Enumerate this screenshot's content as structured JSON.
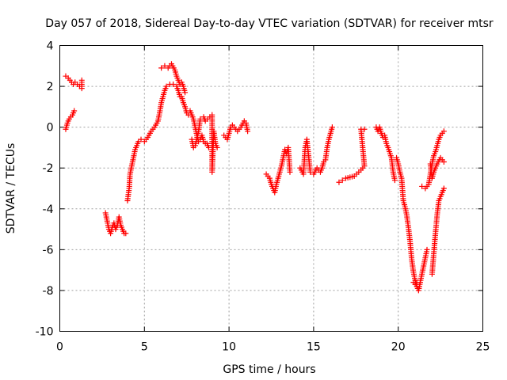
{
  "chart_data": {
    "type": "scatter",
    "title": "Day 057 of 2018, Sidereal Day-to-day VTEC variation (SDTVAR) for receiver mtsr",
    "xlabel": "GPS time / hours",
    "ylabel": "SDTVAR / TECUs",
    "xlim": [
      0,
      25
    ],
    "ylim": [
      -10,
      4
    ],
    "xticks": [
      0,
      5,
      10,
      15,
      20,
      25
    ],
    "yticks": [
      4,
      2,
      0,
      -2,
      -4,
      -6,
      -8,
      -10
    ],
    "xtick_labels": [
      "0",
      "5",
      "10",
      "15",
      "20",
      "25"
    ],
    "ytick_labels": [
      "4",
      "2",
      "0",
      "-2",
      "-4",
      "-6",
      "-8",
      "-10"
    ],
    "grid": true,
    "marker": "+",
    "series": [
      {
        "name": "SDTVAR",
        "color": "#ff0000",
        "segments": [
          [
            [
              0.35,
              2.5
            ],
            [
              0.5,
              2.4
            ],
            [
              0.6,
              2.3
            ],
            [
              0.7,
              2.2
            ],
            [
              0.8,
              2.1
            ],
            [
              0.9,
              2.2
            ],
            [
              1.3,
              1.9
            ],
            [
              1.3,
              2.3
            ]
          ],
          [
            [
              0.35,
              -0.1
            ],
            [
              0.45,
              0.2
            ],
            [
              0.55,
              0.4
            ],
            [
              0.65,
              0.5
            ],
            [
              0.75,
              0.6
            ],
            [
              0.85,
              0.8
            ]
          ],
          [
            [
              2.7,
              -4.2
            ],
            [
              2.8,
              -4.6
            ],
            [
              2.9,
              -5.0
            ],
            [
              3.0,
              -5.2
            ],
            [
              3.1,
              -4.9
            ],
            [
              3.2,
              -4.7
            ],
            [
              3.3,
              -5.0
            ],
            [
              3.4,
              -4.8
            ],
            [
              3.5,
              -4.4
            ],
            [
              3.6,
              -4.8
            ],
            [
              3.8,
              -5.2
            ],
            [
              3.9,
              -5.2
            ]
          ],
          [
            [
              4.0,
              -3.6
            ],
            [
              4.1,
              -3.0
            ],
            [
              4.15,
              -2.3
            ],
            [
              4.25,
              -1.9
            ],
            [
              4.35,
              -1.5
            ],
            [
              4.45,
              -1.1
            ],
            [
              4.55,
              -0.9
            ],
            [
              4.65,
              -0.7
            ],
            [
              4.8,
              -0.6
            ],
            [
              5.0,
              -0.7
            ],
            [
              5.2,
              -0.5
            ],
            [
              5.4,
              -0.2
            ],
            [
              5.6,
              0.0
            ],
            [
              5.8,
              0.3
            ],
            [
              5.9,
              0.7
            ],
            [
              6.0,
              1.2
            ],
            [
              6.1,
              1.5
            ],
            [
              6.2,
              1.8
            ],
            [
              6.3,
              2.0
            ],
            [
              6.5,
              2.1
            ],
            [
              6.7,
              2.1
            ],
            [
              6.9,
              2.0
            ],
            [
              7.0,
              1.8
            ],
            [
              7.1,
              1.5
            ],
            [
              7.2,
              1.5
            ],
            [
              7.3,
              1.2
            ],
            [
              7.4,
              1.0
            ],
            [
              7.5,
              0.7
            ],
            [
              7.6,
              0.6
            ]
          ],
          [
            [
              6.0,
              2.9
            ],
            [
              6.2,
              3.0
            ],
            [
              6.4,
              2.9
            ],
            [
              6.6,
              3.1
            ],
            [
              6.8,
              2.8
            ],
            [
              6.9,
              2.5
            ],
            [
              7.0,
              2.3
            ],
            [
              7.1,
              2.1
            ],
            [
              7.2,
              2.2
            ],
            [
              7.3,
              2.0
            ],
            [
              7.4,
              1.7
            ]
          ],
          [
            [
              7.7,
              0.8
            ],
            [
              7.9,
              0.4
            ],
            [
              8.0,
              0.0
            ],
            [
              8.1,
              -0.4
            ],
            [
              8.2,
              -0.7
            ],
            [
              8.3,
              -0.6
            ],
            [
              8.4,
              -0.4
            ],
            [
              8.5,
              -0.7
            ],
            [
              8.6,
              -0.8
            ],
            [
              8.7,
              -0.8
            ],
            [
              8.8,
              -1.0
            ]
          ],
          [
            [
              7.8,
              -0.6
            ],
            [
              7.9,
              -1.0
            ],
            [
              8.0,
              -0.9
            ],
            [
              8.2,
              -0.2
            ],
            [
              8.3,
              0.4
            ],
            [
              8.5,
              0.5
            ],
            [
              8.6,
              0.3
            ],
            [
              9.0,
              0.6
            ],
            [
              9.0,
              -2.2
            ],
            [
              9.1,
              -0.2
            ],
            [
              9.2,
              -0.8
            ],
            [
              9.3,
              -1.0
            ]
          ],
          [
            [
              9.7,
              -0.4
            ],
            [
              9.9,
              -0.6
            ],
            [
              10.0,
              -0.3
            ],
            [
              10.1,
              0.0
            ],
            [
              10.2,
              0.1
            ],
            [
              10.3,
              0.0
            ],
            [
              10.5,
              -0.2
            ],
            [
              10.7,
              0.0
            ],
            [
              10.9,
              0.3
            ],
            [
              11.0,
              0.2
            ],
            [
              11.1,
              -0.2
            ]
          ],
          [
            [
              12.2,
              -2.3
            ],
            [
              12.4,
              -2.5
            ],
            [
              12.5,
              -2.8
            ],
            [
              12.6,
              -3.0
            ],
            [
              12.7,
              -3.2
            ],
            [
              12.8,
              -2.8
            ],
            [
              12.9,
              -2.5
            ],
            [
              13.0,
              -2.2
            ],
            [
              13.1,
              -1.9
            ],
            [
              13.2,
              -1.5
            ],
            [
              13.3,
              -1.1
            ],
            [
              13.4,
              -1.3
            ],
            [
              13.5,
              -1.0
            ],
            [
              13.6,
              -2.2
            ]
          ],
          [
            [
              14.2,
              -2.0
            ],
            [
              14.4,
              -2.3
            ],
            [
              14.5,
              -1.0
            ],
            [
              14.6,
              -0.6
            ],
            [
              14.7,
              -1.4
            ],
            [
              14.8,
              -2.2
            ],
            [
              15.0,
              -2.3
            ],
            [
              15.2,
              -2.0
            ],
            [
              15.4,
              -2.2
            ],
            [
              15.5,
              -2.0
            ],
            [
              15.6,
              -1.7
            ],
            [
              15.7,
              -1.6
            ],
            [
              15.8,
              -1.0
            ],
            [
              15.9,
              -0.6
            ],
            [
              16.0,
              -0.3
            ],
            [
              16.1,
              0.0
            ]
          ],
          [
            [
              16.5,
              -2.7
            ],
            [
              16.7,
              -2.6
            ],
            [
              16.9,
              -2.5
            ],
            [
              17.4,
              -2.4
            ],
            [
              17.8,
              -2.1
            ],
            [
              18.0,
              -1.9
            ],
            [
              17.8,
              -0.1
            ],
            [
              18.0,
              -0.1
            ]
          ],
          [
            [
              18.7,
              0.0
            ],
            [
              18.8,
              -0.2
            ],
            [
              18.9,
              0.0
            ],
            [
              19.0,
              -0.3
            ],
            [
              19.1,
              -0.5
            ],
            [
              19.2,
              -0.4
            ],
            [
              19.3,
              -0.8
            ],
            [
              19.4,
              -1.0
            ],
            [
              19.6,
              -1.5
            ],
            [
              19.7,
              -2.2
            ],
            [
              19.8,
              -2.6
            ]
          ],
          [
            [
              19.9,
              -1.5
            ],
            [
              20.0,
              -1.8
            ],
            [
              20.1,
              -2.2
            ],
            [
              20.2,
              -2.5
            ],
            [
              20.3,
              -3.6
            ],
            [
              20.4,
              -3.9
            ],
            [
              20.5,
              -4.3
            ],
            [
              20.6,
              -4.9
            ],
            [
              20.7,
              -5.6
            ],
            [
              20.8,
              -6.5
            ],
            [
              20.9,
              -7.1
            ],
            [
              21.0,
              -7.5
            ],
            [
              21.1,
              -7.8
            ],
            [
              21.2,
              -8.0
            ],
            [
              21.3,
              -7.6
            ],
            [
              21.4,
              -7.2
            ],
            [
              21.5,
              -6.8
            ],
            [
              21.6,
              -6.4
            ],
            [
              21.7,
              -6.0
            ]
          ],
          [
            [
              20.9,
              -7.6
            ],
            [
              21.0,
              -7.7
            ],
            [
              21.1,
              -7.6
            ]
          ],
          [
            [
              21.4,
              -2.9
            ],
            [
              21.6,
              -3.0
            ],
            [
              21.8,
              -2.8
            ],
            [
              21.9,
              -2.3
            ],
            [
              22.0,
              -1.8
            ],
            [
              22.1,
              -1.4
            ],
            [
              22.2,
              -1.2
            ],
            [
              22.3,
              -0.9
            ],
            [
              22.4,
              -0.6
            ],
            [
              22.5,
              -0.4
            ],
            [
              22.6,
              -0.3
            ],
            [
              22.7,
              -0.2
            ]
          ],
          [
            [
              22.0,
              -7.2
            ],
            [
              22.1,
              -6.2
            ],
            [
              22.2,
              -5.2
            ],
            [
              22.3,
              -4.3
            ],
            [
              22.4,
              -3.6
            ],
            [
              22.5,
              -3.4
            ],
            [
              22.6,
              -3.2
            ],
            [
              22.7,
              -3.0
            ]
          ],
          [
            [
              21.9,
              -1.8
            ],
            [
              22.0,
              -2.5
            ],
            [
              22.1,
              -2.2
            ],
            [
              22.3,
              -1.8
            ],
            [
              22.5,
              -1.5
            ],
            [
              22.7,
              -1.7
            ]
          ]
        ]
      }
    ]
  }
}
